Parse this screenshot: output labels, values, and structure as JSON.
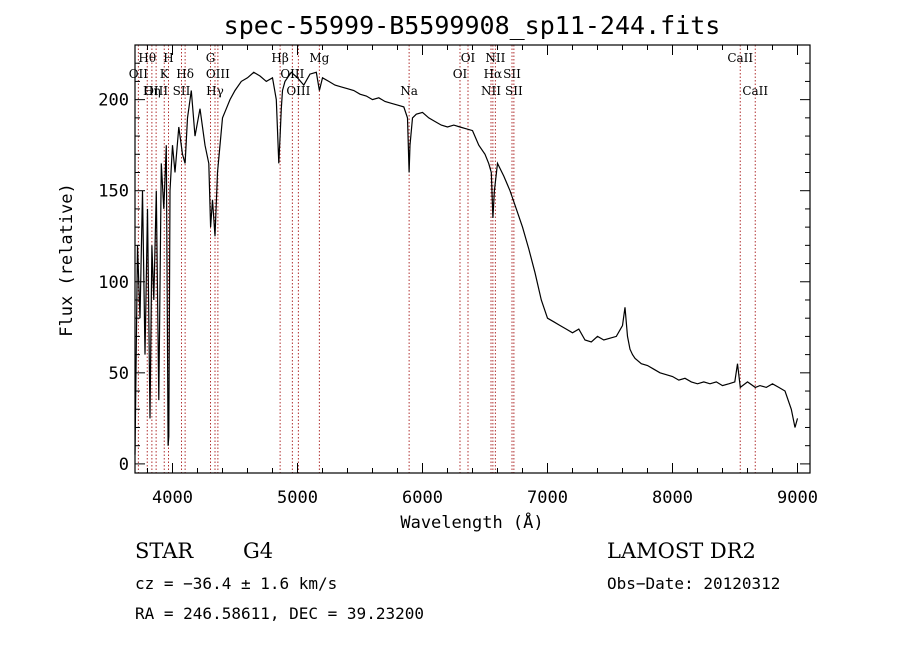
{
  "chart_data": {
    "type": "line",
    "title": "spec-55999-B5599908_sp11-244.fits",
    "xlabel": "Wavelength (Å)",
    "ylabel": "Flux (relative)",
    "xlim": [
      3700,
      9100
    ],
    "ylim": [
      -5,
      230
    ],
    "xticks": [
      4000,
      5000,
      6000,
      7000,
      8000,
      9000
    ],
    "yticks": [
      0,
      50,
      100,
      150,
      200
    ],
    "grid": false,
    "series": [
      {
        "x": [
          3700,
          3720,
          3740,
          3760,
          3780,
          3800,
          3820,
          3835,
          3850,
          3870,
          3890,
          3910,
          3930,
          3950,
          3965,
          3970,
          3980,
          4000,
          4020,
          4050,
          4080,
          4101,
          4120,
          4150,
          4180,
          4220,
          4260,
          4290,
          4305,
          4320,
          4340,
          4360,
          4380,
          4400,
          4430,
          4460,
          4500,
          4550,
          4600,
          4650,
          4700,
          4750,
          4800,
          4830,
          4850,
          4861,
          4870,
          4880,
          4900,
          4950,
          5000,
          5050,
          5100,
          5150,
          5175,
          5200,
          5250,
          5300,
          5350,
          5400,
          5450,
          5500,
          5550,
          5600,
          5650,
          5700,
          5750,
          5800,
          5850,
          5880,
          5893,
          5900,
          5920,
          5950,
          6000,
          6050,
          6100,
          6150,
          6200,
          6250,
          6300,
          6350,
          6400,
          6450,
          6500,
          6530,
          6550,
          6563,
          6575,
          6600,
          6650,
          6700,
          6750,
          6800,
          6850,
          6900,
          6950,
          7000,
          7050,
          7100,
          7150,
          7200,
          7250,
          7300,
          7350,
          7400,
          7450,
          7500,
          7550,
          7600,
          7620,
          7640,
          7660,
          7680,
          7700,
          7750,
          7800,
          7850,
          7900,
          7950,
          8000,
          8050,
          8100,
          8150,
          8200,
          8250,
          8300,
          8350,
          8400,
          8450,
          8498,
          8520,
          8542,
          8600,
          8662,
          8700,
          8750,
          8800,
          8850,
          8900,
          8950,
          8980,
          9000
        ],
        "values": [
          5,
          120,
          80,
          150,
          60,
          140,
          25,
          120,
          90,
          150,
          35,
          165,
          140,
          175,
          10,
          15,
          150,
          175,
          160,
          185,
          170,
          165,
          190,
          205,
          180,
          195,
          175,
          165,
          130,
          145,
          125,
          160,
          175,
          190,
          195,
          200,
          205,
          210,
          212,
          215,
          213,
          210,
          212,
          200,
          165,
          180,
          195,
          205,
          210,
          215,
          212,
          208,
          214,
          215,
          205,
          212,
          210,
          208,
          207,
          206,
          205,
          203,
          202,
          200,
          201,
          199,
          198,
          197,
          196,
          190,
          160,
          175,
          190,
          192,
          193,
          190,
          188,
          186,
          185,
          186,
          185,
          184,
          183,
          175,
          170,
          165,
          160,
          135,
          150,
          165,
          158,
          150,
          140,
          130,
          118,
          105,
          90,
          80,
          78,
          76,
          74,
          72,
          74,
          68,
          67,
          70,
          68,
          69,
          70,
          76,
          86,
          70,
          63,
          60,
          58,
          55,
          54,
          52,
          50,
          49,
          48,
          46,
          47,
          45,
          44,
          45,
          44,
          45,
          43,
          44,
          45,
          55,
          42,
          45,
          42,
          43,
          42,
          44,
          42,
          40,
          30,
          20,
          25
        ]
      }
    ],
    "spectral_lines": [
      {
        "label": "Hθ",
        "x": 3798,
        "row": 1
      },
      {
        "label": "OII",
        "x": 3727,
        "row": 2
      },
      {
        "label": "OIII",
        "x": 3869,
        "row": 3
      },
      {
        "label": "Hη",
        "x": 3835,
        "row": 3
      },
      {
        "label": "H",
        "x": 3968,
        "row": 1
      },
      {
        "label": "K",
        "x": 3934,
        "row": 2
      },
      {
        "label": "Hδ",
        "x": 4101,
        "row": 2
      },
      {
        "label": "SII",
        "x": 4072,
        "row": 3
      },
      {
        "label": "G",
        "x": 4304,
        "row": 1
      },
      {
        "label": "OIII",
        "x": 4363,
        "row": 2
      },
      {
        "label": "Hγ",
        "x": 4340,
        "row": 3
      },
      {
        "label": "Hβ",
        "x": 4861,
        "row": 1
      },
      {
        "label": "OIII",
        "x": 4959,
        "row": 2
      },
      {
        "label": "OIII",
        "x": 5007,
        "row": 3
      },
      {
        "label": "Mg",
        "x": 5175,
        "row": 1
      },
      {
        "label": "Na",
        "x": 5893,
        "row": 3
      },
      {
        "label": "OI",
        "x": 6364,
        "row": 1
      },
      {
        "label": "OI",
        "x": 6300,
        "row": 2
      },
      {
        "label": "NII",
        "x": 6583,
        "row": 1
      },
      {
        "label": "Hα",
        "x": 6563,
        "row": 2
      },
      {
        "label": "SII",
        "x": 6716,
        "row": 2
      },
      {
        "label": "NII",
        "x": 6548,
        "row": 3
      },
      {
        "label": "SII",
        "x": 6731,
        "row": 3
      },
      {
        "label": "CaII",
        "x": 8542,
        "row": 1
      },
      {
        "label": "CaII",
        "x": 8662,
        "row": 3
      }
    ],
    "line_marker_color": "#b03030"
  },
  "info": {
    "object_class": "STAR",
    "subclass": "G4",
    "survey": "LAMOST DR2",
    "cz": "cz = −36.4 ± 1.6 km/s",
    "obs_date": "Obs−Date: 20120312",
    "coords": "RA = 246.58611, DEC =  39.23200"
  }
}
